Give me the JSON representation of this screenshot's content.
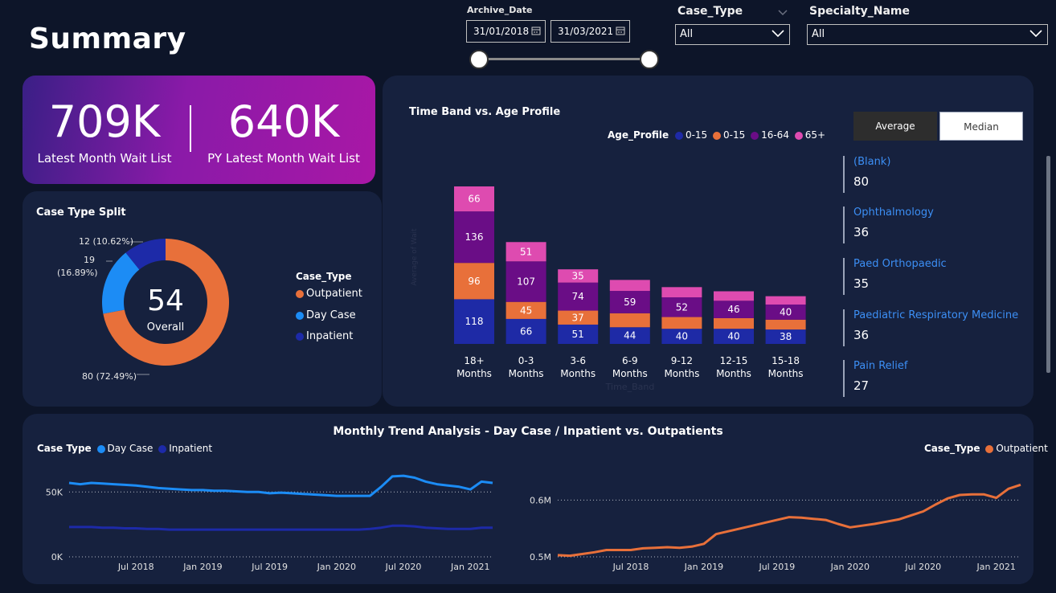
{
  "title": "Summary",
  "archive_date": {
    "label": "Archive_Date",
    "start": "31/01/2018",
    "end": "31/03/2021"
  },
  "case_type_filter": {
    "label": "Case_Type",
    "value": "All"
  },
  "specialty_filter": {
    "label": "Specialty_Name",
    "value": "All"
  },
  "kpis": [
    {
      "value": "709K",
      "caption": "Latest Month Wait List"
    },
    {
      "value": "640K",
      "caption": "PY Latest Month Wait List"
    }
  ],
  "case_split": {
    "title": "Case Type Split",
    "center_value": "54",
    "center_caption": "Overall",
    "legend_title": "Case_Type",
    "labels": {
      "outpatient": "80 (72.49%)",
      "daycase_a": "19",
      "daycase_b": "(16.89%)",
      "inpatient": "12 (10.62%)"
    }
  },
  "toggle": {
    "average": "Average",
    "median": "Median"
  },
  "specialties": [
    {
      "name": "(Blank)",
      "value": "80"
    },
    {
      "name": "Ophthalmology",
      "value": "36"
    },
    {
      "name": "Paed Orthopaedic",
      "value": "35"
    },
    {
      "name": "Paediatric Respiratory Medicine",
      "value": "36"
    },
    {
      "name": "Pain Relief",
      "value": "27"
    }
  ],
  "trend_title": "Monthly Trend Analysis - Day Case / Inpatient vs. Outpatients",
  "colors": {
    "outpatient": "#e8703a",
    "daycase": "#1c8cf5",
    "inpatient": "#1d2aa8",
    "age_0_15_a": "#1e2aa6",
    "age_0_15_b": "#e8703a",
    "age_16_64": "#6a0d86",
    "age_65": "#de4bb0"
  },
  "chart_data": [
    {
      "type": "pie",
      "title": "Case Type Split",
      "categories": [
        "Outpatient",
        "Day Case",
        "Inpatient"
      ],
      "values": [
        80,
        19,
        12
      ],
      "percent": [
        72.49,
        16.89,
        10.62
      ],
      "legend_position": "right"
    },
    {
      "type": "bar",
      "stacked": true,
      "title": "Time Band vs. Age Profile",
      "legend_title": "Age_Profile",
      "categories": [
        [
          "18+",
          "Months"
        ],
        [
          "0-3",
          "Months"
        ],
        [
          "3-6",
          "Months"
        ],
        [
          "6-9",
          "Months"
        ],
        [
          "9-12",
          "Months"
        ],
        [
          "12-15",
          "Months"
        ],
        [
          "15-18",
          "Months"
        ]
      ],
      "series": [
        {
          "name": "0-15",
          "values": [
            118,
            66,
            51,
            44,
            40,
            40,
            38
          ]
        },
        {
          "name": "0-15",
          "values": [
            96,
            45,
            37,
            37,
            31,
            28,
            26
          ]
        },
        {
          "name": "16-64",
          "values": [
            136,
            107,
            74,
            59,
            52,
            46,
            40
          ]
        },
        {
          "name": "65+",
          "values": [
            66,
            51,
            35,
            29,
            27,
            25,
            22
          ]
        }
      ],
      "data_labels": [
        [
          "118",
          "96",
          "136",
          "66"
        ],
        [
          "66",
          "45",
          "107",
          "51"
        ],
        [
          "51",
          "37",
          "74",
          "35"
        ],
        [
          "44",
          "",
          "59",
          ""
        ],
        [
          "40",
          "",
          "52",
          ""
        ],
        [
          "40",
          "",
          "46",
          ""
        ],
        [
          "38",
          "",
          "40",
          ""
        ]
      ],
      "xlabel": "Time_Band",
      "ylabel": "Average of Wait"
    },
    {
      "type": "line",
      "legend_title": "Case Type",
      "x_ticks": [
        "Jul 2018",
        "Jan 2019",
        "Jul 2019",
        "Jan 2020",
        "Jul 2020",
        "Jan 2021"
      ],
      "y_ticks": [
        "0K",
        "50K"
      ],
      "ylim": [
        0,
        70000
      ],
      "x": [
        "2018-01",
        "2018-02",
        "2018-03",
        "2018-04",
        "2018-05",
        "2018-06",
        "2018-07",
        "2018-08",
        "2018-09",
        "2018-10",
        "2018-11",
        "2018-12",
        "2019-01",
        "2019-02",
        "2019-03",
        "2019-04",
        "2019-05",
        "2019-06",
        "2019-07",
        "2019-08",
        "2019-09",
        "2019-10",
        "2019-11",
        "2019-12",
        "2020-01",
        "2020-02",
        "2020-03",
        "2020-04",
        "2020-05",
        "2020-06",
        "2020-07",
        "2020-08",
        "2020-09",
        "2020-10",
        "2020-11",
        "2020-12",
        "2021-01",
        "2021-02",
        "2021-03"
      ],
      "series": [
        {
          "name": "Day Case",
          "values": [
            57000,
            56000,
            57000,
            56500,
            56000,
            55500,
            55000,
            54000,
            53000,
            52500,
            52000,
            51500,
            51500,
            51000,
            51000,
            50500,
            50000,
            50000,
            49000,
            49500,
            49000,
            48500,
            48000,
            47500,
            47000,
            47000,
            47000,
            47000,
            54000,
            62000,
            62500,
            61000,
            58000,
            56000,
            55000,
            54000,
            52000,
            58000,
            57000
          ]
        },
        {
          "name": "Inpatient",
          "values": [
            23000,
            23000,
            23000,
            22500,
            22500,
            22000,
            22000,
            21500,
            21500,
            21000,
            21000,
            21000,
            21000,
            21000,
            21000,
            21000,
            21000,
            21000,
            21000,
            21000,
            21000,
            21000,
            21000,
            21000,
            21000,
            21000,
            21000,
            21500,
            22500,
            24000,
            24000,
            23500,
            22500,
            22000,
            21500,
            21500,
            21500,
            22500,
            22500
          ]
        }
      ]
    },
    {
      "type": "line",
      "legend_title": "Case_Type",
      "x_ticks": [
        "Jul 2018",
        "Jan 2019",
        "Jul 2019",
        "Jan 2020",
        "Jul 2020",
        "Jan 2021"
      ],
      "y_ticks": [
        "0.5M",
        "0.6M"
      ],
      "ylim": [
        0.5,
        0.66
      ],
      "x": [
        "2018-01",
        "2018-02",
        "2018-03",
        "2018-04",
        "2018-05",
        "2018-06",
        "2018-07",
        "2018-08",
        "2018-09",
        "2018-10",
        "2018-11",
        "2018-12",
        "2019-01",
        "2019-02",
        "2019-03",
        "2019-04",
        "2019-05",
        "2019-06",
        "2019-07",
        "2019-08",
        "2019-09",
        "2019-10",
        "2019-11",
        "2019-12",
        "2020-01",
        "2020-02",
        "2020-03",
        "2020-04",
        "2020-05",
        "2020-06",
        "2020-07",
        "2020-08",
        "2020-09",
        "2020-10",
        "2020-11",
        "2020-12",
        "2021-01",
        "2021-02",
        "2021-03"
      ],
      "series": [
        {
          "name": "Outpatient",
          "values": [
            0.503,
            0.502,
            0.505,
            0.508,
            0.512,
            0.512,
            0.512,
            0.515,
            0.516,
            0.517,
            0.516,
            0.518,
            0.523,
            0.54,
            0.545,
            0.55,
            0.555,
            0.56,
            0.565,
            0.57,
            0.569,
            0.567,
            0.565,
            0.558,
            0.552,
            0.555,
            0.558,
            0.562,
            0.566,
            0.573,
            0.58,
            0.592,
            0.603,
            0.609,
            0.61,
            0.61,
            0.604,
            0.62,
            0.627
          ]
        }
      ]
    }
  ]
}
